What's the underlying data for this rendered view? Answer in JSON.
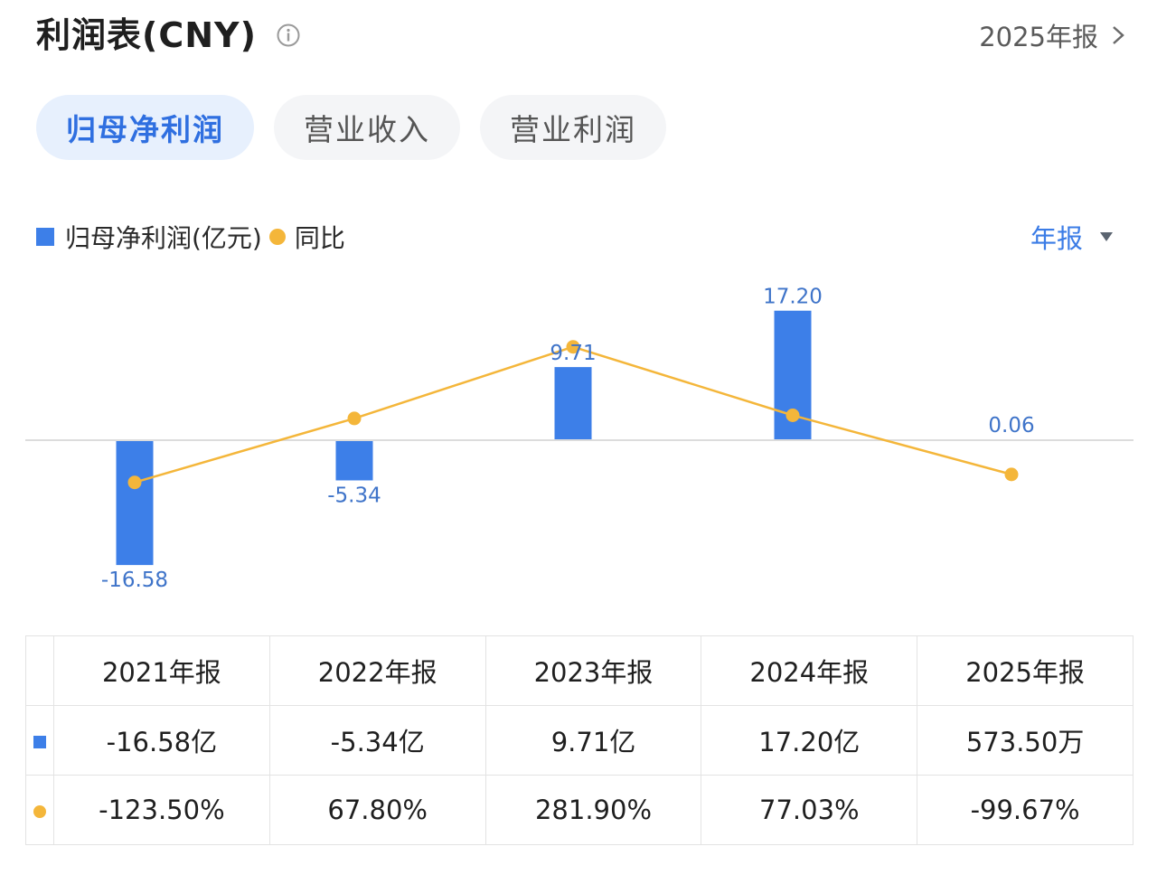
{
  "header": {
    "title": "利润表(CNY)",
    "period_link": "2025年报"
  },
  "tabs": [
    {
      "label": "归母净利润",
      "active": true
    },
    {
      "label": "营业收入",
      "active": false
    },
    {
      "label": "营业利润",
      "active": false
    }
  ],
  "legend": {
    "bar_label": "归母净利润(亿元)",
    "line_label": "同比"
  },
  "period_select": "年报",
  "colors": {
    "bar": "#3d7fe8",
    "line": "#f4b63a",
    "positive": "#d9504a",
    "negative": "#2e9a5a"
  },
  "chart_data": {
    "type": "bar",
    "categories": [
      "2021年报",
      "2022年报",
      "2023年报",
      "2024年报",
      "2025年报"
    ],
    "series": [
      {
        "name": "归母净利润(亿元)",
        "type": "bar",
        "values": [
          -16.58,
          -5.34,
          9.71,
          17.2,
          0.06
        ],
        "labels": [
          "-16.58",
          "-5.34",
          "9.71",
          "17.20",
          "0.06"
        ]
      },
      {
        "name": "同比",
        "type": "line",
        "values": [
          -123.5,
          67.8,
          281.9,
          77.03,
          -99.67
        ]
      }
    ],
    "grid": false,
    "legend_position": "top-left"
  },
  "table": {
    "headers": [
      "2021年报",
      "2022年报",
      "2023年报",
      "2024年报",
      "2025年报"
    ],
    "profit_row": [
      "-16.58亿",
      "-5.34亿",
      "9.71亿",
      "17.20亿",
      "573.50万"
    ],
    "yoy_row": [
      "-123.50%",
      "67.80%",
      "281.90%",
      "77.03%",
      "-99.67%"
    ]
  }
}
